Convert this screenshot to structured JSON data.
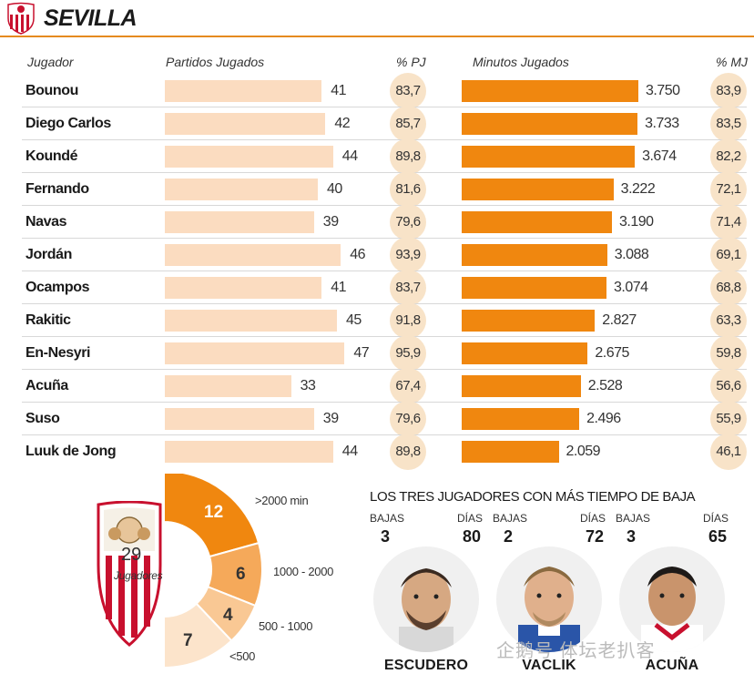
{
  "header": {
    "team": "SEVILLA"
  },
  "columns": {
    "player": "Jugador",
    "matches": "Partidos Jugados",
    "matches_pct": "% PJ",
    "minutes": "Minutos Jugados",
    "minutes_pct": "% MJ"
  },
  "chart_data": [
    {
      "type": "bar",
      "title": "",
      "categories": [
        "Bounou",
        "Diego Carlos",
        "Koundé",
        "Fernando",
        "Navas",
        "Jordán",
        "Ocampos",
        "Rakitic",
        "En-Nesyri",
        "Acuña",
        "Suso",
        "Luuk de Jong"
      ],
      "series": [
        {
          "name": "Partidos Jugados",
          "values": [
            41,
            42,
            44,
            40,
            39,
            46,
            41,
            45,
            47,
            33,
            39,
            44
          ],
          "labels": [
            "41",
            "42",
            "44",
            "40",
            "39",
            "46",
            "41",
            "45",
            "47",
            "33",
            "39",
            "44"
          ]
        },
        {
          "name": "% PJ",
          "values": [
            83.7,
            85.7,
            89.8,
            81.6,
            79.6,
            93.9,
            83.7,
            91.8,
            95.9,
            67.4,
            79.6,
            89.8
          ],
          "labels": [
            "83,7",
            "85,7",
            "89,8",
            "81,6",
            "79,6",
            "93,9",
            "83,7",
            "91,8",
            "95,9",
            "67,4",
            "79,6",
            "89,8"
          ]
        },
        {
          "name": "Minutos Jugados",
          "values": [
            3750,
            3733,
            3674,
            3222,
            3190,
            3088,
            3074,
            2827,
            2675,
            2528,
            2496,
            2059
          ],
          "labels": [
            "3.750",
            "3.733",
            "3.674",
            "3.222",
            "3.190",
            "3.088",
            "3.074",
            "2.827",
            "2.675",
            "2.528",
            "2.496",
            "2.059"
          ]
        },
        {
          "name": "% MJ",
          "values": [
            83.9,
            83.5,
            82.2,
            72.1,
            71.4,
            69.1,
            68.8,
            63.3,
            59.8,
            56.6,
            55.9,
            46.1
          ],
          "labels": [
            "83,9",
            "83,5",
            "82,2",
            "72,1",
            "71,4",
            "69,1",
            "68,8",
            "63,3",
            "59,8",
            "56,6",
            "55,9",
            "46,1"
          ]
        }
      ]
    },
    {
      "type": "pie",
      "title": "",
      "total": "29",
      "total_label": "Jugadores",
      "categories": [
        ">2000 min",
        "1000 - 2000",
        "500 - 1000",
        "<500"
      ],
      "values": [
        12,
        6,
        4,
        7
      ],
      "colors": [
        "#f0870f",
        "#f5a95a",
        "#f9c894",
        "#fce4cb"
      ]
    }
  ],
  "bajas": {
    "title": "LOS TRES JUGADORES CON MÁS TIEMPO DE BAJA",
    "bajas_label": "BAJAS",
    "dias_label": "DÍAS",
    "players": [
      {
        "name": "ESCUDERO",
        "bajas": "3",
        "dias": "80"
      },
      {
        "name": "VACLIK",
        "bajas": "2",
        "dias": "72"
      },
      {
        "name": "ACUÑA",
        "bajas": "3",
        "dias": "65"
      }
    ]
  },
  "watermark": "企鹅号 体坛老扒客",
  "colors": {
    "accent": "#f0870f",
    "light_bar": "#fbdcc0",
    "pct_circle": "#f8e3c8",
    "rule": "#e58a1f"
  }
}
